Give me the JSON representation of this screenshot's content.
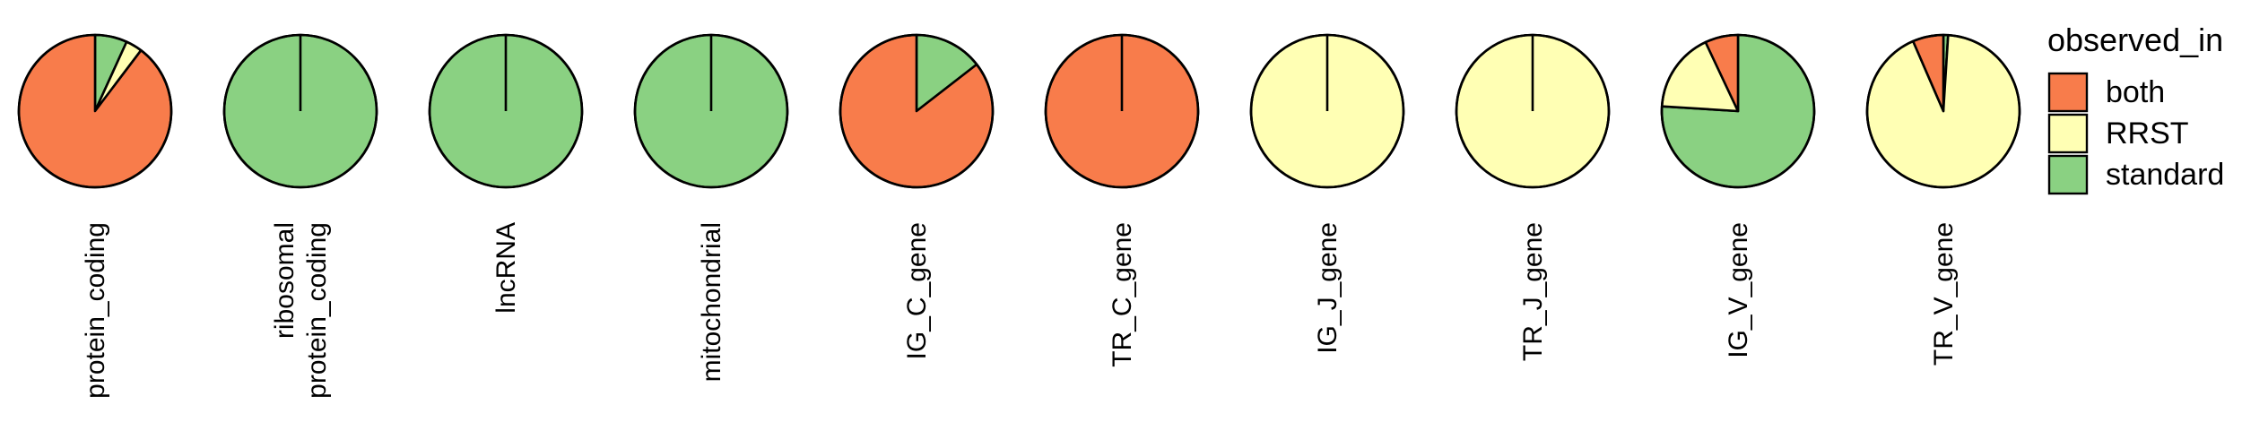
{
  "chart_data": {
    "type": "pie",
    "legend": {
      "title": "observed_in",
      "position": "right",
      "entries": [
        {
          "key": "both",
          "label": "both",
          "color": "#F87C4B"
        },
        {
          "key": "RRST",
          "label": "RRST",
          "color": "#FFFFB4"
        },
        {
          "key": "standard",
          "label": "standard",
          "color": "#8AD182"
        }
      ]
    },
    "pies": [
      {
        "category": [
          "protein_coding"
        ],
        "slices": {
          "standard": 0.068,
          "RRST": 0.035,
          "both": 0.897
        }
      },
      {
        "category": [
          "ribosomal",
          "protein_coding"
        ],
        "slices": {
          "standard": 1.0,
          "RRST": 0,
          "both": 0
        }
      },
      {
        "category": [
          "lncRNA"
        ],
        "slices": {
          "standard": 1.0,
          "RRST": 0,
          "both": 0
        }
      },
      {
        "category": [
          "mitochondrial"
        ],
        "slices": {
          "standard": 1.0,
          "RRST": 0,
          "both": 0
        }
      },
      {
        "category": [
          "IG_C_gene"
        ],
        "slices": {
          "standard": 0.145,
          "RRST": 0,
          "both": 0.855
        }
      },
      {
        "category": [
          "TR_C_gene"
        ],
        "slices": {
          "standard": 0,
          "RRST": 0,
          "both": 1.0
        }
      },
      {
        "category": [
          "IG_J_gene"
        ],
        "slices": {
          "standard": 0,
          "RRST": 1.0,
          "both": 0
        }
      },
      {
        "category": [
          "TR_J_gene"
        ],
        "slices": {
          "standard": 0,
          "RRST": 1.0,
          "both": 0
        }
      },
      {
        "category": [
          "IG_V_gene"
        ],
        "slices": {
          "standard": 0.76,
          "RRST": 0.17,
          "both": 0.07
        }
      },
      {
        "category": [
          "TR_V_gene"
        ],
        "slices": {
          "standard": 0.01,
          "RRST": 0.925,
          "both": 0.065
        }
      }
    ]
  }
}
